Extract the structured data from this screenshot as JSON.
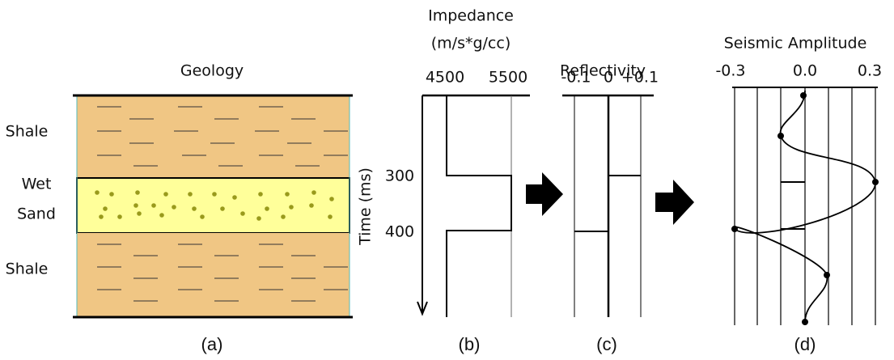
{
  "geology": {
    "title": "Geology",
    "layer_labels": [
      [
        "Shale"
      ],
      [
        "Wet",
        "Sand"
      ],
      [
        "Shale"
      ]
    ]
  },
  "impedance": {
    "title": [
      "Impedance",
      "(m/s*g/cc)"
    ],
    "ticks": [
      "4500",
      "5500"
    ]
  },
  "time_axis": {
    "label": "Time (ms)",
    "ticks": [
      "300",
      "400"
    ]
  },
  "reflectivity": {
    "title": "Reflectivity",
    "ticks": [
      "-0.1",
      "0",
      "+0.1"
    ]
  },
  "seismic": {
    "title": "Seismic Amplitude",
    "ticks": [
      "-0.3",
      "0.0",
      "0.3"
    ]
  },
  "captions": [
    "(a)",
    "(b)",
    "(c)",
    "(d)"
  ]
}
